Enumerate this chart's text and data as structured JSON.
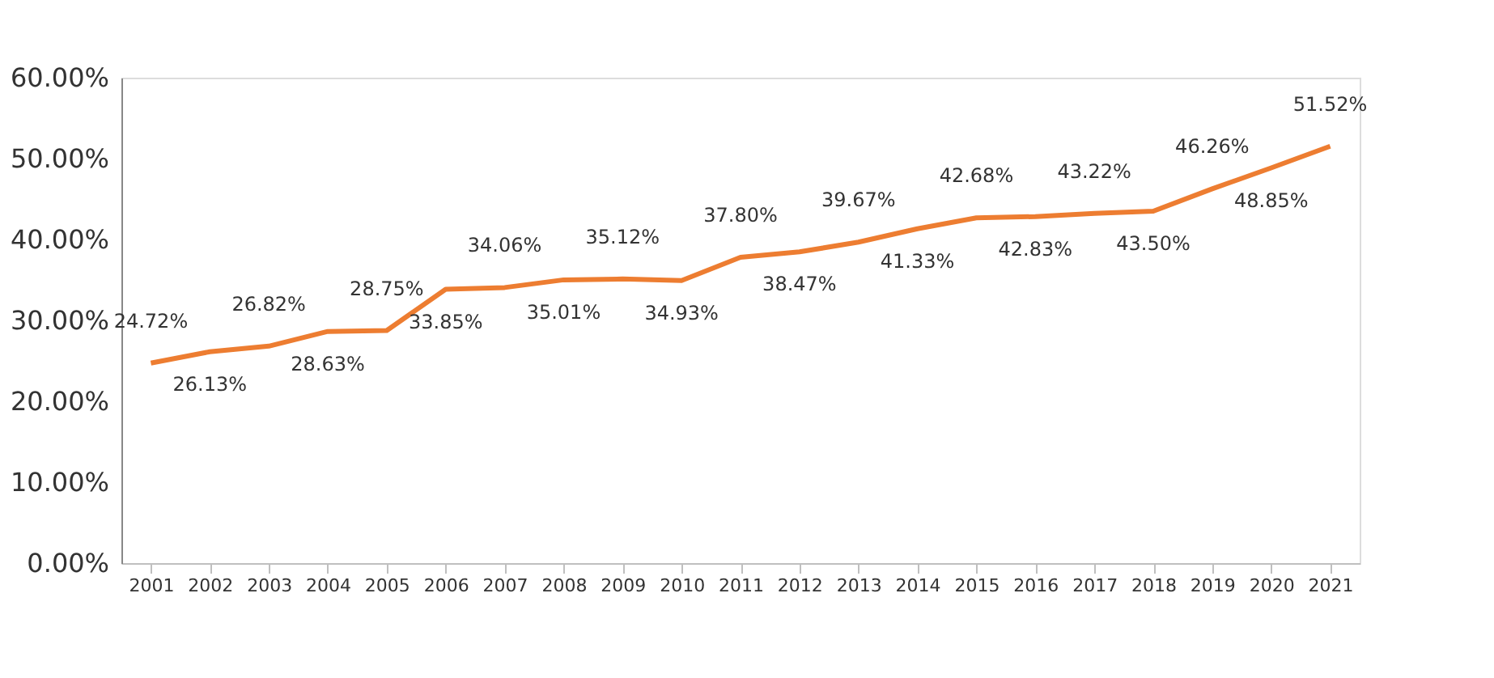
{
  "chart_data": {
    "type": "line",
    "categories": [
      "2001",
      "2002",
      "2003",
      "2004",
      "2005",
      "2006",
      "2007",
      "2008",
      "2009",
      "2010",
      "2011",
      "2012",
      "2013",
      "2014",
      "2015",
      "2016",
      "2017",
      "2018",
      "2019",
      "2020",
      "2021"
    ],
    "series": [
      {
        "color": "#ed7d31",
        "values": [
          24.72,
          26.13,
          26.82,
          28.63,
          28.75,
          33.85,
          34.06,
          35.01,
          35.12,
          34.93,
          37.8,
          38.47,
          39.67,
          41.33,
          42.68,
          42.83,
          43.22,
          43.5,
          46.26,
          48.85,
          51.52
        ],
        "value_labels": [
          "24.72%",
          "26.13%",
          "26.82%",
          "28.63%",
          "28.75%",
          "33.85%",
          "34.06%",
          "35.01%",
          "35.12%",
          "34.93%",
          "37.80%",
          "38.47%",
          "39.67%",
          "41.33%",
          "42.68%",
          "42.83%",
          "43.22%",
          "43.50%",
          "46.26%",
          "48.85%",
          "51.52%"
        ]
      }
    ],
    "ylim": [
      0,
      60
    ],
    "yticks": [
      {
        "value": 0,
        "label": "0.00%"
      },
      {
        "value": 10,
        "label": "10.00%"
      },
      {
        "value": 20,
        "label": "20.00%"
      },
      {
        "value": 30,
        "label": "30.00%"
      },
      {
        "value": 40,
        "label": "40.00%"
      },
      {
        "value": 50,
        "label": "50.00%"
      },
      {
        "value": 60,
        "label": "60.00%"
      }
    ],
    "grid": false,
    "marker": "none",
    "line_style": "solid"
  }
}
